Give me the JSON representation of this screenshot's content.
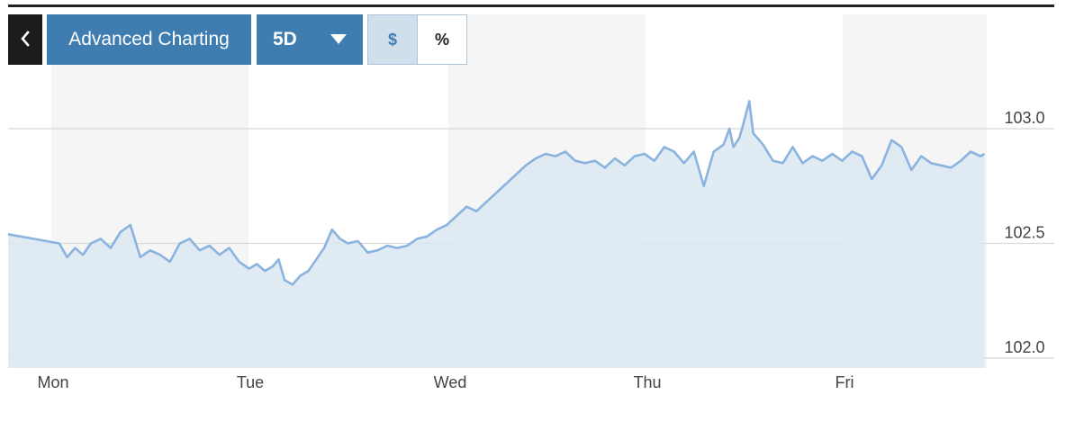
{
  "toolbar": {
    "back_icon": "chevron-left-icon",
    "back_glyph": "‹",
    "advanced_label": "Advanced Charting",
    "range_label": "5D",
    "range_dropdown_icon": "caret-down-icon",
    "unit_dollar_label": "$",
    "unit_percent_label": "%",
    "selected_unit": "$"
  },
  "colors": {
    "line": "#8ab4df",
    "area_fill": "#dce8f2",
    "accent": "#3f7db1",
    "band": "#f5f5f5",
    "gridline": "#d8d8d8"
  },
  "chart_data": {
    "type": "area",
    "y_axis_position": "right",
    "ylim": [
      101.95,
      103.4
    ],
    "yticks": [
      102.0,
      102.5,
      103.0
    ],
    "ytick_labels": [
      "102.0",
      "102.5",
      "103.0"
    ],
    "x_labels": [
      "Mon",
      "Tue",
      "Wed",
      "Thu",
      "Fri"
    ],
    "shaded_bands": "alternating days (Mon, Wed, Fri)",
    "series": [
      {
        "x_day_fraction": [
          0.0,
          0.04,
          0.08,
          0.12,
          0.16,
          0.2,
          0.25,
          0.3,
          0.35,
          0.4,
          0.45,
          0.5,
          0.55,
          0.6,
          0.65,
          0.7,
          0.75,
          0.8,
          0.85,
          0.9,
          0.95,
          1.0,
          1.04,
          1.08,
          1.12,
          1.15,
          1.18,
          1.22,
          1.26,
          1.3,
          1.34,
          1.38,
          1.42,
          1.46,
          1.5,
          1.55,
          1.6,
          1.65,
          1.7,
          1.75,
          1.8,
          1.85,
          1.9,
          1.95,
          2.0,
          2.05,
          2.1,
          2.15,
          2.2,
          2.25,
          2.3,
          2.35,
          2.4,
          2.45,
          2.5,
          2.55,
          2.6,
          2.65,
          2.7,
          2.75,
          2.8,
          2.85,
          2.9,
          2.95,
          3.0,
          3.05,
          3.1,
          3.15,
          3.2,
          3.25,
          3.3,
          3.35,
          3.4,
          3.43,
          3.45,
          3.48,
          3.5,
          3.53,
          3.55,
          3.58,
          3.6,
          3.65,
          3.7,
          3.75,
          3.8,
          3.85,
          3.9,
          3.95,
          4.0,
          4.05,
          4.1,
          4.15,
          4.2,
          4.25,
          4.3,
          4.35,
          4.4,
          4.45,
          4.5,
          4.55,
          4.6,
          4.65,
          4.7,
          4.72
        ],
        "values": [
          102.54,
          102.5,
          102.44,
          102.48,
          102.45,
          102.5,
          102.52,
          102.48,
          102.55,
          102.58,
          102.44,
          102.47,
          102.45,
          102.42,
          102.5,
          102.52,
          102.47,
          102.49,
          102.45,
          102.48,
          102.42,
          102.39,
          102.41,
          102.38,
          102.4,
          102.43,
          102.34,
          102.32,
          102.36,
          102.38,
          102.43,
          102.48,
          102.56,
          102.52,
          102.5,
          102.51,
          102.46,
          102.47,
          102.49,
          102.48,
          102.49,
          102.52,
          102.53,
          102.56,
          102.58,
          102.62,
          102.66,
          102.64,
          102.68,
          102.72,
          102.76,
          102.8,
          102.84,
          102.87,
          102.89,
          102.88,
          102.9,
          102.86,
          102.85,
          102.86,
          102.83,
          102.87,
          102.84,
          102.88,
          102.89,
          102.86,
          102.92,
          102.9,
          102.85,
          102.9,
          102.75,
          102.9,
          102.93,
          103.0,
          102.92,
          102.96,
          103.02,
          103.12,
          102.98,
          102.95,
          102.93,
          102.86,
          102.85,
          102.92,
          102.85,
          102.88,
          102.86,
          102.89,
          102.86,
          102.9,
          102.88,
          102.78,
          102.84,
          102.95,
          102.92,
          102.82,
          102.88,
          102.85,
          102.84,
          102.83,
          102.86,
          102.9,
          102.88,
          102.89
        ]
      }
    ]
  }
}
